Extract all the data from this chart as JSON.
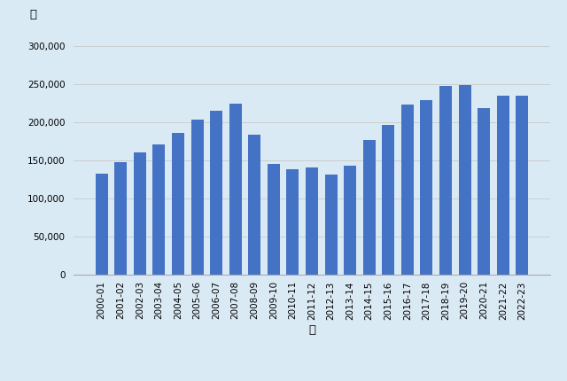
{
  "categories": [
    "2000-01",
    "2001-02",
    "2002-03",
    "2003-04",
    "2004-05",
    "2005-06",
    "2006-07",
    "2007-08",
    "2008-09",
    "2009-10",
    "2010-11",
    "2011-12",
    "2012-13",
    "2013-14",
    "2014-15",
    "2015-16",
    "2016-17",
    "2017-18",
    "2018-19",
    "2019-20",
    "2020-21",
    "2021-22",
    "2022-23"
  ],
  "values": [
    132000,
    146700,
    159870,
    170970,
    185500,
    202650,
    214940,
    223530,
    182770,
    144870,
    137390,
    140790,
    130610,
    142490,
    176580,
    195530,
    223230,
    228170,
    247770,
    248590,
    217750,
    234460,
    234400
  ],
  "bar_color": "#4472C4",
  "background_color": "#daeaf5",
  "ylabel": "戸",
  "xlabel": "年",
  "ylim": [
    0,
    320000
  ],
  "yticks": [
    0,
    50000,
    100000,
    150000,
    200000,
    250000,
    300000
  ],
  "tick_fontsize": 7.5,
  "label_fontsize": 9.5,
  "grid_color": "#c8c8c8",
  "bar_width": 0.65
}
